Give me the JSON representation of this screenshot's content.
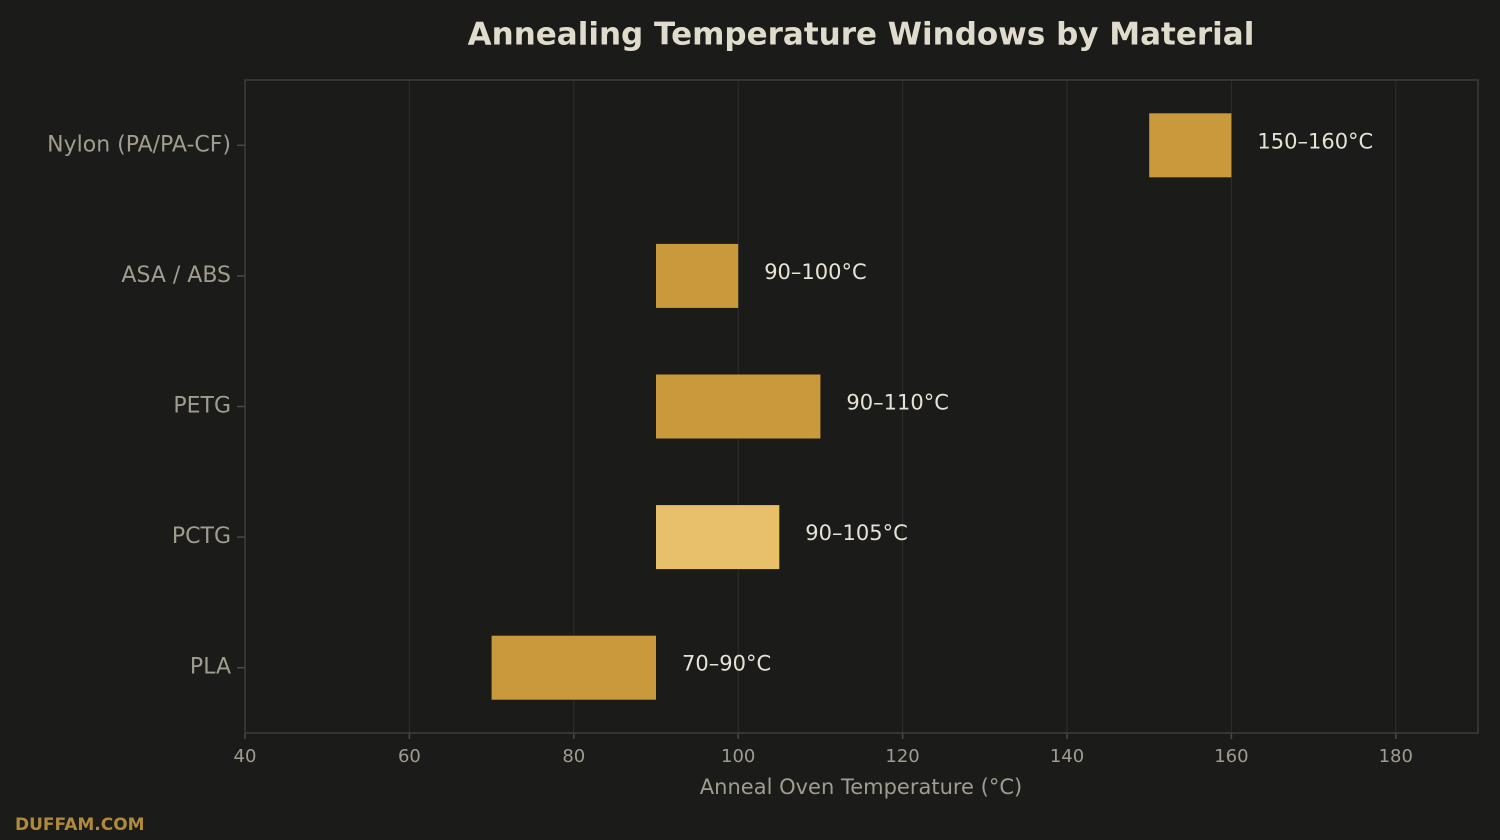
{
  "chart_data": {
    "type": "range-bar",
    "orientation": "horizontal",
    "title": "Annealing Temperature Windows by Material",
    "x_label": "Anneal Oven Temperature (°C)",
    "watermark": "DUFFAM.COM",
    "categories": [
      "Nylon (PA/PA-CF)",
      "ASA / ABS",
      "PETG",
      "PCTG",
      "PLA"
    ],
    "low": [
      150,
      90,
      90,
      90,
      70
    ],
    "high": [
      160,
      100,
      110,
      105,
      90
    ],
    "value_labels": [
      "150–160°C",
      "90–100°C",
      "90–110°C",
      "90–105°C",
      "70–90°C"
    ],
    "colors": [
      "#c89a3c",
      "#c89a3c",
      "#c89a3c",
      "#e8c06a",
      "#c89a3c"
    ],
    "xlim": [
      40,
      190
    ],
    "xticks": [
      40,
      60,
      80,
      100,
      120,
      140,
      160,
      180
    ],
    "grid": true
  }
}
